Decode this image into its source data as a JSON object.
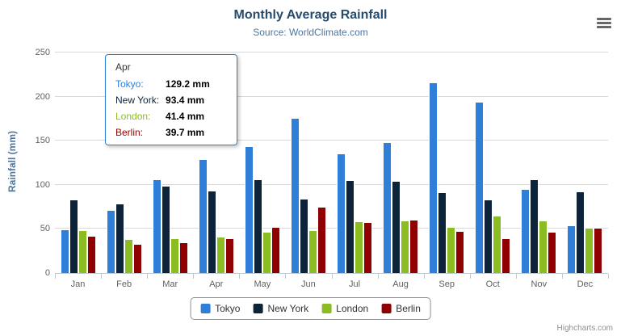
{
  "title": "Monthly Average Rainfall",
  "subtitle": "Source: WorldClimate.com",
  "credits": "Highcharts.com",
  "chart_data": {
    "type": "bar",
    "title": "Monthly Average Rainfall",
    "subtitle": "Source: WorldClimate.com",
    "categories": [
      "Jan",
      "Feb",
      "Mar",
      "Apr",
      "May",
      "Jun",
      "Jul",
      "Aug",
      "Sep",
      "Oct",
      "Nov",
      "Dec"
    ],
    "ylabel": "Rainfall (mm)",
    "ylim": [
      0,
      250
    ],
    "ytick_interval": 50,
    "grid": true,
    "legend_position": "bottom",
    "series": [
      {
        "name": "Tokyo",
        "color": "#2f7ed8",
        "values": [
          49.9,
          71.5,
          106.4,
          129.2,
          144.0,
          176.0,
          135.6,
          148.5,
          216.4,
          194.1,
          95.6,
          54.4
        ]
      },
      {
        "name": "New York",
        "color": "#0d233a",
        "values": [
          83.6,
          78.8,
          98.5,
          93.4,
          106.0,
          84.5,
          105.0,
          104.3,
          91.2,
          83.5,
          106.6,
          92.3
        ]
      },
      {
        "name": "London",
        "color": "#8bbc21",
        "values": [
          48.9,
          38.8,
          39.3,
          41.4,
          47.0,
          48.3,
          59.0,
          59.6,
          52.4,
          65.2,
          59.3,
          51.2
        ]
      },
      {
        "name": "Berlin",
        "color": "#910000",
        "values": [
          42.4,
          33.2,
          34.5,
          39.7,
          52.6,
          75.5,
          57.4,
          60.4,
          47.6,
          39.1,
          46.8,
          51.1
        ]
      }
    ]
  },
  "tooltip": {
    "header": "Apr",
    "rows": [
      {
        "name": "Tokyo:",
        "value": "129.2 mm",
        "color": "#2f7ed8"
      },
      {
        "name": "New York:",
        "value": "93.4 mm",
        "color": "#0d233a"
      },
      {
        "name": "London:",
        "value": "41.4 mm",
        "color": "#8bbc21"
      },
      {
        "name": "Berlin:",
        "value": "39.7 mm",
        "color": "#910000"
      }
    ]
  }
}
